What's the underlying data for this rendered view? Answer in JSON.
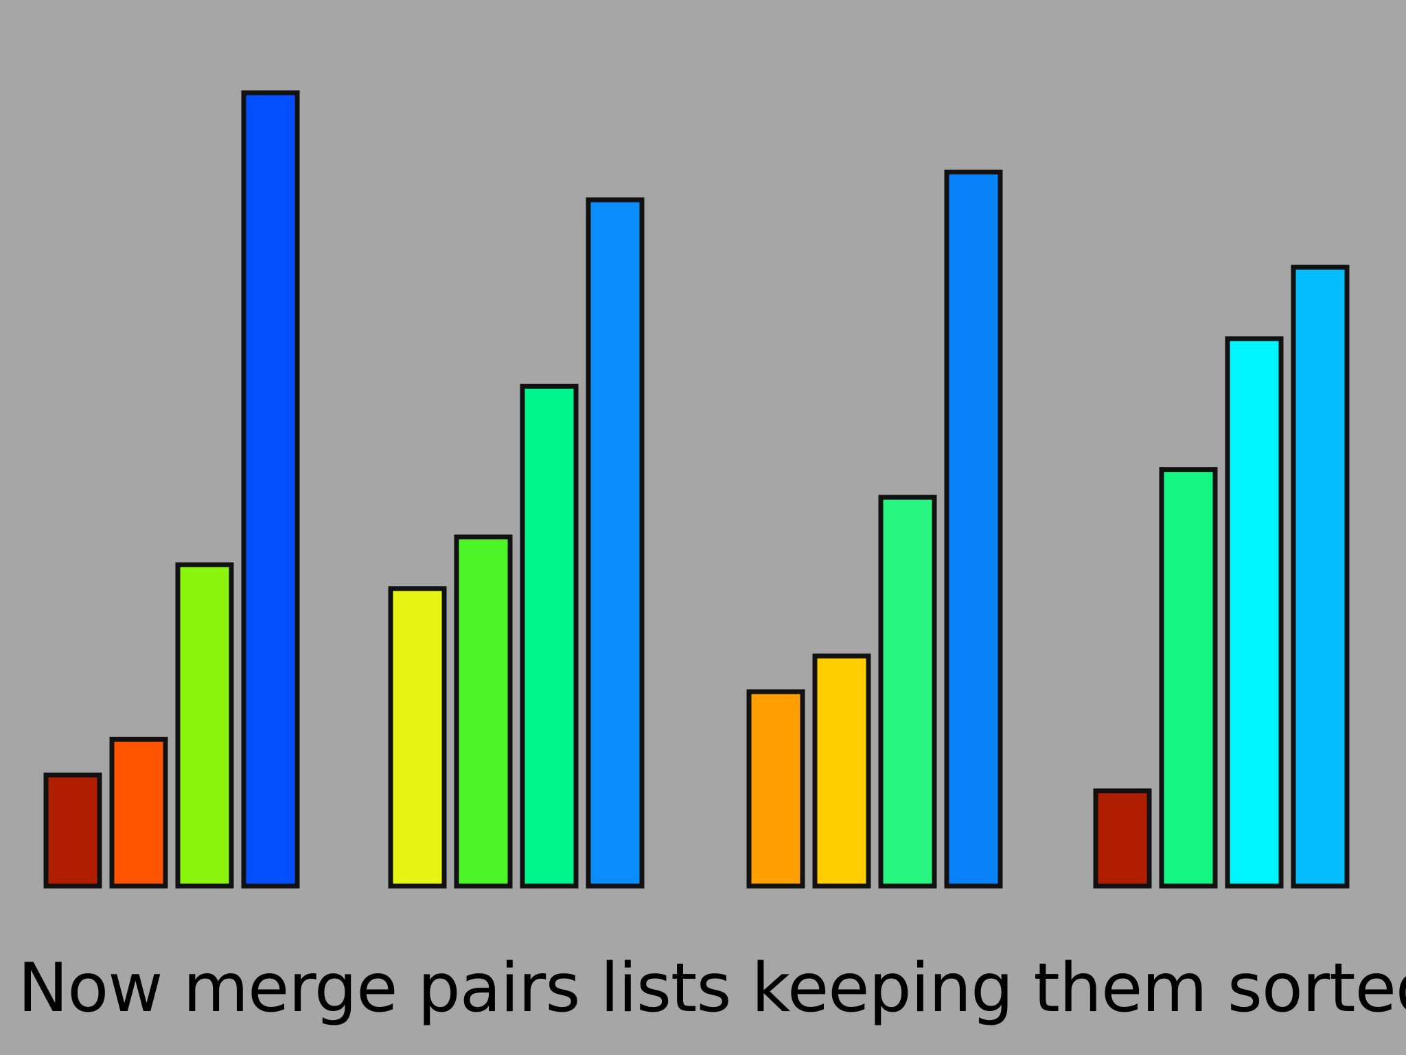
{
  "slide": {
    "caption": "Now merge pairs lists keeping them sorted"
  },
  "chart_data": {
    "type": "bar",
    "title": "",
    "xlabel": "",
    "ylabel": "",
    "axes_visible": false,
    "grid": false,
    "legend": "none",
    "ylim": [
      0,
      100
    ],
    "groups": [
      {
        "values": [
          14,
          18.5,
          40.5,
          100
        ],
        "colors": [
          "#b01e00",
          "#ff5500",
          "#8cf50f",
          "#0750ff"
        ]
      },
      {
        "values": [
          37.5,
          44,
          63,
          86.5
        ],
        "colors": [
          "#e6f514",
          "#4cf528",
          "#00f58c",
          "#0a8cfa"
        ]
      },
      {
        "values": [
          24.5,
          29,
          49,
          90
        ],
        "colors": [
          "#ffa000",
          "#ffcd00",
          "#28f582",
          "#0a82fa"
        ]
      },
      {
        "values": [
          12,
          52.5,
          69,
          78
        ],
        "colors": [
          "#b01e00",
          "#14f582",
          "#00f5ff",
          "#05beff"
        ]
      }
    ]
  }
}
